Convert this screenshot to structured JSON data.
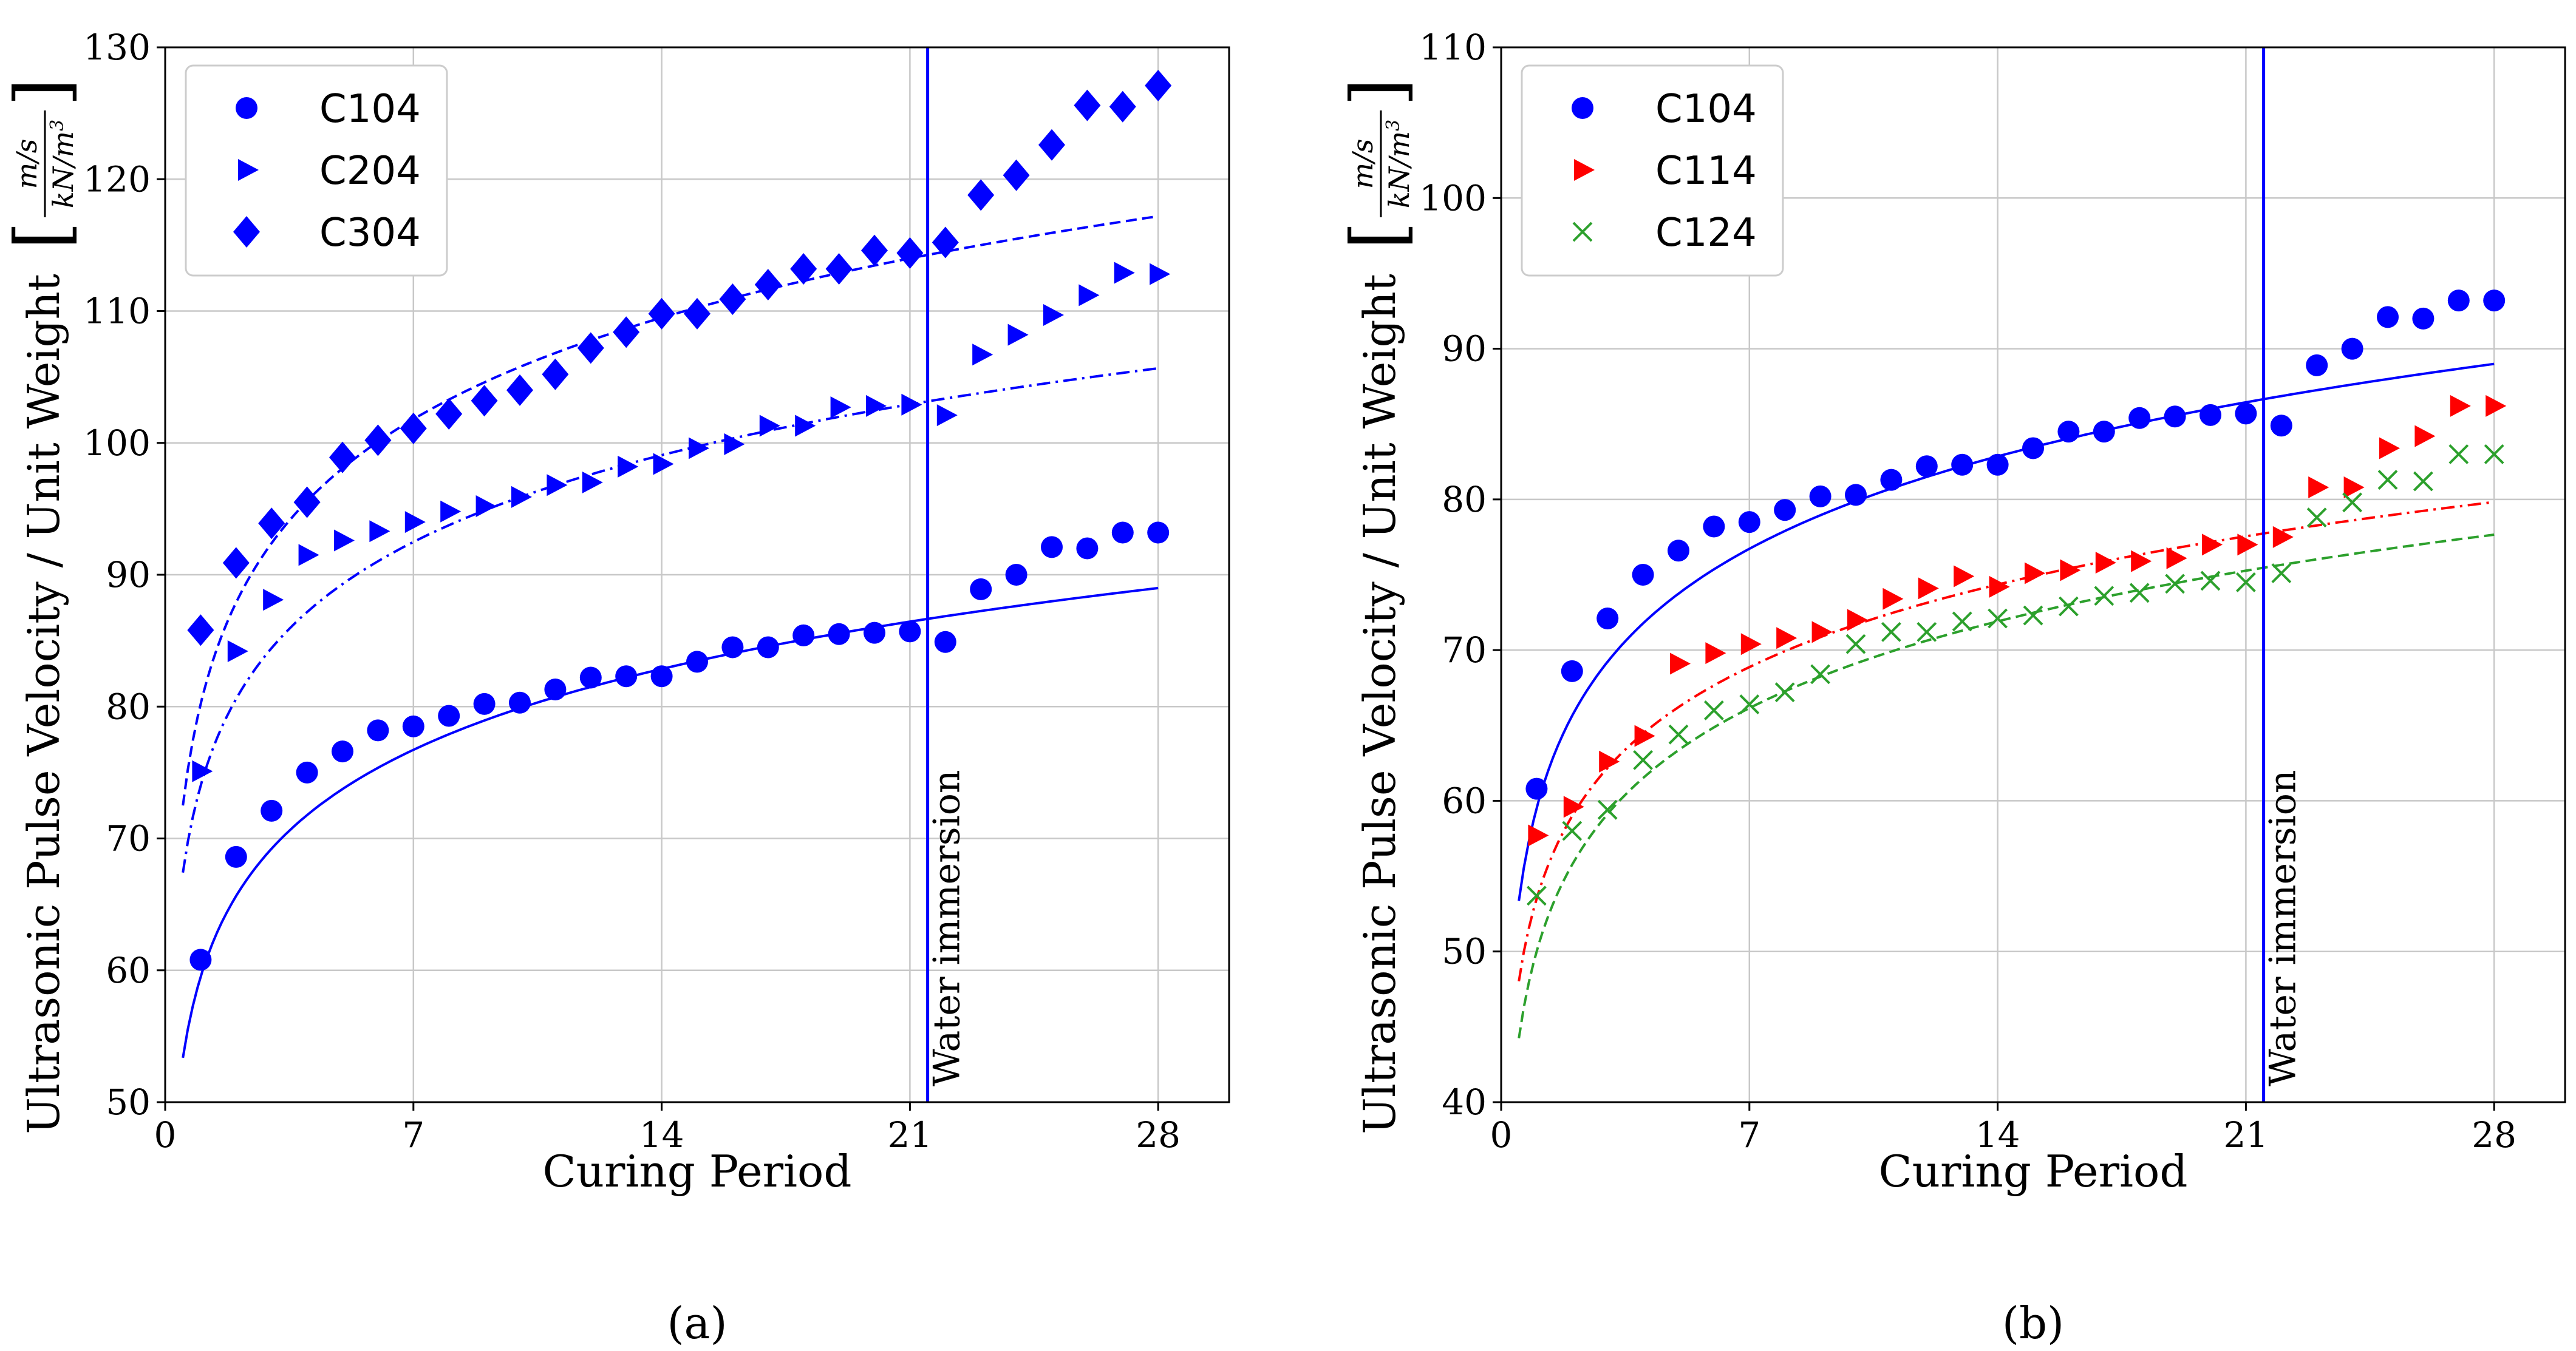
{
  "colors": {
    "blue": "#0000ff",
    "red": "#ff0000",
    "green": "#2ca02c",
    "grid": "#c8c8c8"
  },
  "chart_data": [
    {
      "panel_label": "(a)",
      "type": "scatter",
      "xlabel": "Curing Period",
      "ylabel": "Ultrasonic Pulse Velocity / Unit Weight",
      "yunit": {
        "num": "m/s",
        "den": "kN/m3"
      },
      "xlim": [
        0,
        30
      ],
      "ylim": [
        50,
        130
      ],
      "xticks": [
        "0",
        "7",
        "14",
        "21",
        "28"
      ],
      "yticks": [
        "50",
        "60",
        "70",
        "80",
        "90",
        "100",
        "110",
        "120",
        "130"
      ],
      "grid": true,
      "legend_position": "top-left",
      "annotation": {
        "text": "Water immersion",
        "x": 21.5
      },
      "series": [
        {
          "name": "C104",
          "color": "blue",
          "marker": "circle",
          "fit_style": "solid",
          "x": [
            1,
            2,
            3,
            4,
            5,
            6,
            7,
            8,
            9,
            10,
            11,
            12,
            13,
            14,
            15,
            16,
            17,
            18,
            19,
            20,
            21,
            22,
            23,
            24,
            25,
            26,
            27,
            28
          ],
          "y": [
            60.8,
            68.6,
            72.1,
            75.0,
            76.6,
            78.2,
            78.5,
            79.3,
            80.2,
            80.3,
            81.3,
            82.2,
            82.3,
            82.3,
            83.4,
            84.5,
            84.5,
            85.4,
            85.5,
            85.6,
            85.7,
            84.9,
            88.9,
            90.0,
            92.1,
            92.0,
            93.2,
            93.2
          ],
          "fit": {
            "a": 59.5,
            "b": 8.85
          }
        },
        {
          "name": "C204",
          "color": "blue",
          "marker": "triangle-right",
          "fit_style": "dashdot",
          "x": [
            1,
            2,
            3,
            4,
            5,
            6,
            7,
            8,
            9,
            10,
            11,
            12,
            13,
            14,
            15,
            16,
            17,
            18,
            19,
            20,
            21,
            22,
            23,
            24,
            25,
            26,
            27,
            28
          ],
          "y": [
            75.1,
            84.2,
            88.1,
            91.5,
            92.6,
            93.3,
            94.0,
            94.8,
            95.2,
            95.9,
            96.8,
            97.0,
            98.2,
            98.4,
            99.6,
            99.9,
            101.3,
            101.3,
            102.7,
            102.8,
            102.9,
            102.1,
            106.7,
            108.2,
            109.7,
            111.2,
            112.9,
            112.8
          ],
          "fit": {
            "a": 74.0,
            "b": 9.5
          }
        },
        {
          "name": "C304",
          "color": "blue",
          "marker": "diamond",
          "fit_style": "dashed",
          "x": [
            1,
            2,
            3,
            4,
            5,
            6,
            7,
            8,
            9,
            10,
            11,
            12,
            13,
            14,
            15,
            16,
            17,
            18,
            19,
            20,
            21,
            22,
            23,
            24,
            25,
            26,
            27,
            28
          ],
          "y": [
            85.8,
            90.9,
            93.9,
            95.5,
            98.9,
            100.2,
            101.1,
            102.2,
            103.2,
            104.0,
            105.2,
            107.2,
            108.4,
            109.8,
            109.8,
            110.9,
            112.0,
            113.2,
            113.2,
            114.6,
            114.4,
            115.2,
            118.8,
            120.3,
            122.6,
            125.6,
            125.5,
            127.1
          ],
          "fit": {
            "a": 80.2,
            "b": 11.1
          }
        }
      ]
    },
    {
      "panel_label": "(b)",
      "type": "scatter",
      "xlabel": "Curing Period",
      "ylabel": "Ultrasonic Pulse Velocity / Unit Weight",
      "yunit": {
        "num": "m/s",
        "den": "kN/m3"
      },
      "xlim": [
        0,
        30
      ],
      "ylim": [
        40,
        110
      ],
      "xticks": [
        "0",
        "7",
        "14",
        "21",
        "28"
      ],
      "yticks": [
        "40",
        "50",
        "60",
        "70",
        "80",
        "90",
        "100",
        "110"
      ],
      "grid": true,
      "legend_position": "top-left",
      "annotation": {
        "text": "Water immersion",
        "x": 21.5
      },
      "series": [
        {
          "name": "C104",
          "color": "blue",
          "marker": "circle",
          "fit_style": "solid",
          "x": [
            1,
            2,
            3,
            4,
            5,
            6,
            7,
            8,
            9,
            10,
            11,
            12,
            13,
            14,
            15,
            16,
            17,
            18,
            19,
            20,
            21,
            22,
            23,
            24,
            25,
            26,
            27,
            28
          ],
          "y": [
            60.8,
            68.6,
            72.1,
            75.0,
            76.6,
            78.2,
            78.5,
            79.3,
            80.2,
            80.3,
            81.3,
            82.2,
            82.3,
            82.3,
            83.4,
            84.5,
            84.5,
            85.4,
            85.5,
            85.6,
            85.7,
            84.9,
            88.9,
            90.0,
            92.1,
            92.0,
            93.2,
            93.2
          ],
          "fit": {
            "a": 59.5,
            "b": 8.85
          }
        },
        {
          "name": "C114",
          "color": "red",
          "marker": "triangle-right",
          "fit_style": "dashdot",
          "x": [
            1,
            2,
            3,
            4,
            5,
            6,
            7,
            8,
            9,
            10,
            11,
            12,
            13,
            14,
            15,
            16,
            17,
            18,
            19,
            20,
            21,
            22,
            23,
            24,
            25,
            26,
            27,
            28
          ],
          "y": [
            57.7,
            59.6,
            62.6,
            64.3,
            69.1,
            69.8,
            70.4,
            70.8,
            71.2,
            72.0,
            73.4,
            74.1,
            74.9,
            74.2,
            75.1,
            75.3,
            75.8,
            75.9,
            76.1,
            77.0,
            77.0,
            77.5,
            80.8,
            80.8,
            83.4,
            84.2,
            86.2,
            86.2
          ],
          "fit": {
            "a": 53.5,
            "b": 7.9
          }
        },
        {
          "name": "C124",
          "color": "green",
          "marker": "x",
          "fit_style": "dashed",
          "x": [
            1,
            2,
            3,
            4,
            5,
            6,
            7,
            8,
            9,
            10,
            11,
            12,
            13,
            14,
            15,
            16,
            17,
            18,
            19,
            20,
            21,
            22,
            23,
            24,
            25,
            26,
            27,
            28
          ],
          "y": [
            53.7,
            58.0,
            59.4,
            62.7,
            64.4,
            66.0,
            66.4,
            67.2,
            68.4,
            70.4,
            71.2,
            71.2,
            71.9,
            72.1,
            72.3,
            72.9,
            73.6,
            73.8,
            74.4,
            74.6,
            74.5,
            75.1,
            78.8,
            79.8,
            81.3,
            81.2,
            83.0,
            83.0
          ],
          "fit": {
            "a": 50.0,
            "b": 8.3
          }
        }
      ]
    }
  ]
}
